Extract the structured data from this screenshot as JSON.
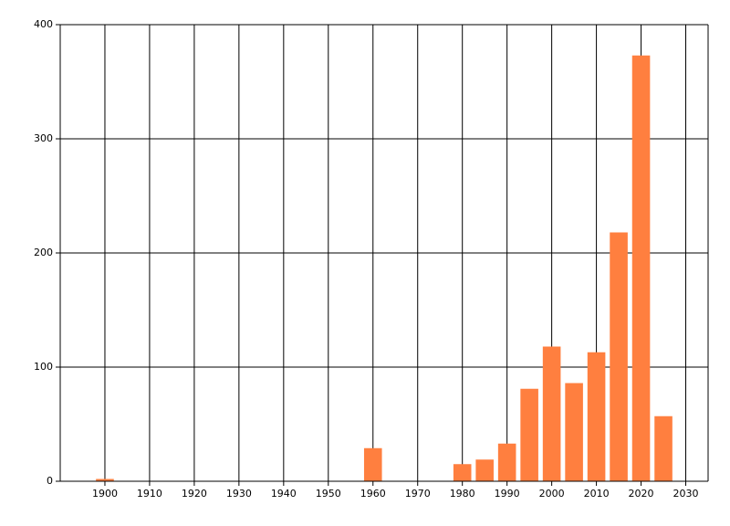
{
  "chart_data": {
    "type": "bar",
    "x": [
      1900,
      1960,
      1980,
      1985,
      1990,
      1995,
      2000,
      2005,
      2010,
      2015,
      2020,
      2025
    ],
    "values": [
      2,
      29,
      15,
      19,
      33,
      81,
      118,
      86,
      113,
      218,
      373,
      57
    ],
    "color": "#ff7f3f",
    "xlim": [
      1890,
      2035
    ],
    "xticks": [
      1900,
      1910,
      1920,
      1930,
      1940,
      1950,
      1960,
      1970,
      1980,
      1990,
      2000,
      2010,
      2020,
      2030
    ],
    "ylim": [
      0,
      400
    ],
    "yticks": [
      0,
      100,
      200,
      300,
      400
    ],
    "grid": true
  }
}
